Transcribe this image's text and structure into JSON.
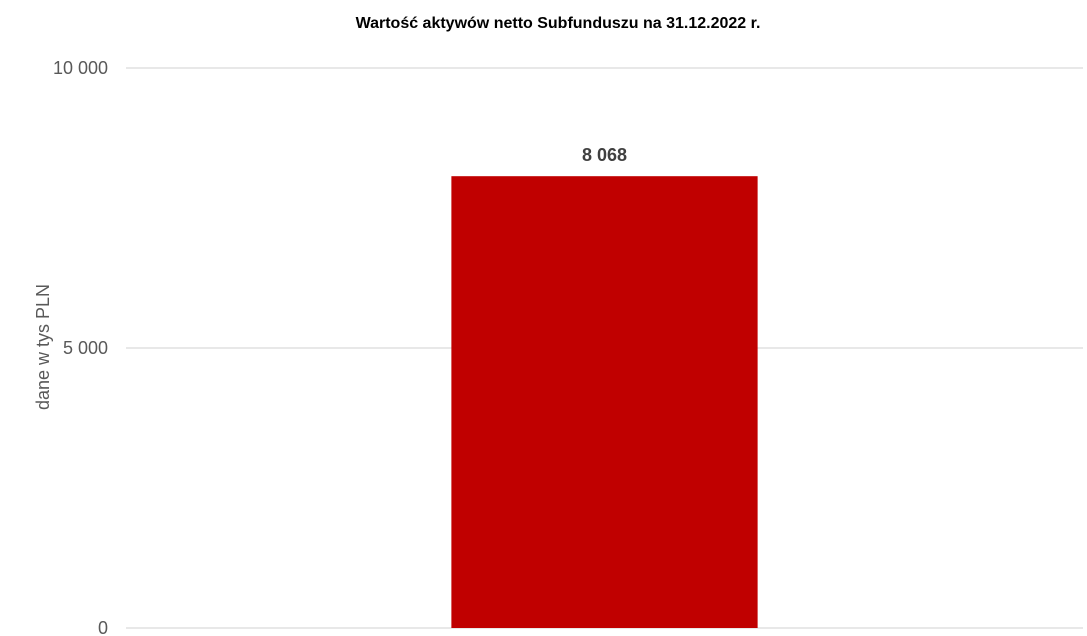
{
  "chart_data": {
    "type": "bar",
    "title": "Wartość aktywów netto Subfunduszu na 31.12.2022 r.",
    "xlabel": "",
    "ylabel": "dane  w tys PLN",
    "categories": [
      ""
    ],
    "values": [
      8068
    ],
    "data_labels": [
      "8 068"
    ],
    "ylim": [
      0,
      10000
    ],
    "yticks": [
      0,
      5000,
      10000
    ],
    "ytick_labels": [
      "0",
      "5 000",
      "10 000"
    ],
    "grid": true,
    "legend": "none",
    "bar_color": "#c00000"
  }
}
